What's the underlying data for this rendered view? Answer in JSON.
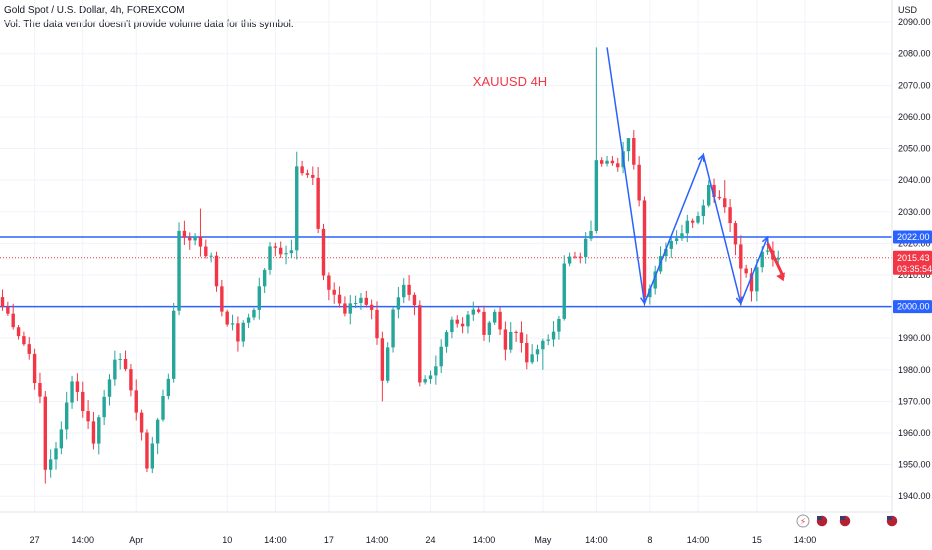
{
  "header": {
    "title": "Gold Spot / U.S. Dollar, 4h, FOREXCOM",
    "volume_note": "Vol: The data vendor doesn't provide volume data for this symbol."
  },
  "chart_data": {
    "type": "candlestick",
    "title": "XAUUSD 4H",
    "currency": "USD",
    "ylim": [
      1935,
      2097
    ],
    "y_ticks": [
      1940,
      1950,
      1960,
      1970,
      1980,
      1990,
      2000,
      2010,
      2020,
      2030,
      2040,
      2050,
      2060,
      2070,
      2080,
      2090
    ],
    "y_tick_labels": [
      "1940.00",
      "1950.00",
      "1960.00",
      "1970.00",
      "1980.00",
      "1990.00",
      "2000.00",
      "2010.00",
      "2020.00",
      "2030.00",
      "2040.00",
      "2050.00",
      "2060.00",
      "2070.00",
      "2080.00",
      "2090.00"
    ],
    "x_ticks": [
      {
        "label": "27",
        "bar": 6
      },
      {
        "label": "14:00",
        "bar": 15
      },
      {
        "label": "Apr",
        "bar": 25
      },
      {
        "label": "10",
        "bar": 42
      },
      {
        "label": "14:00",
        "bar": 51
      },
      {
        "label": "17",
        "bar": 61
      },
      {
        "label": "14:00",
        "bar": 70
      },
      {
        "label": "24",
        "bar": 80
      },
      {
        "label": "14:00",
        "bar": 90
      },
      {
        "label": "May",
        "bar": 101
      },
      {
        "label": "14:00",
        "bar": 111
      },
      {
        "label": "8",
        "bar": 121
      },
      {
        "label": "14:00",
        "bar": 130
      },
      {
        "label": "15",
        "bar": 141
      },
      {
        "label": "14:00",
        "bar": 150
      }
    ],
    "horizontal_levels": [
      {
        "price": 2022.0,
        "label": "2022.00",
        "color": "#2962ff"
      },
      {
        "price": 2000.0,
        "label": "2000.00",
        "color": "#2962ff"
      }
    ],
    "last_price": {
      "price": 2015.43,
      "label": "2015.43",
      "countdown": "03:35:54",
      "color": "#f23645"
    },
    "zigzag": [
      [
        113,
        2082
      ],
      [
        120,
        2001
      ],
      [
        131,
        2048
      ],
      [
        138,
        2001
      ],
      [
        143,
        2022
      ]
    ],
    "arrow": {
      "from": [
        143,
        2020
      ],
      "to": [
        146,
        2008
      ],
      "color": "#f23645"
    },
    "colors": {
      "up": "#26a69a",
      "down": "#f23645",
      "grid": "#f0f3fa",
      "zigzag": "#2962ff"
    },
    "anchors": [
      [
        0,
        2000
      ],
      [
        2,
        1995
      ],
      [
        5,
        1985
      ],
      [
        7,
        1970
      ],
      [
        8,
        1948
      ],
      [
        11,
        1960
      ],
      [
        13,
        1978
      ],
      [
        15,
        1968
      ],
      [
        17,
        1958
      ],
      [
        21,
        1985
      ],
      [
        24,
        1975
      ],
      [
        27,
        1950
      ],
      [
        31,
        1978
      ],
      [
        33,
        2022
      ],
      [
        36,
        2022
      ],
      [
        39,
        2015
      ],
      [
        41,
        1999
      ],
      [
        44,
        1990
      ],
      [
        47,
        2000
      ],
      [
        50,
        2018
      ],
      [
        54,
        2018
      ],
      [
        55,
        2046
      ],
      [
        58,
        2040
      ],
      [
        60,
        2008
      ],
      [
        62,
        2004
      ],
      [
        64,
        1998
      ],
      [
        67,
        2003
      ],
      [
        69,
        2000
      ],
      [
        71,
        1978
      ],
      [
        73,
        1998
      ],
      [
        75,
        2005
      ],
      [
        77,
        1999
      ],
      [
        78,
        1975
      ],
      [
        80,
        1978
      ],
      [
        82,
        1988
      ],
      [
        84,
        1997
      ],
      [
        86,
        1993
      ],
      [
        88,
        2000
      ],
      [
        90,
        1993
      ],
      [
        92,
        1998
      ],
      [
        94,
        1988
      ],
      [
        96,
        1992
      ],
      [
        98,
        1982
      ],
      [
        100,
        1988
      ],
      [
        102,
        1988
      ],
      [
        104,
        1998
      ],
      [
        105,
        2015
      ],
      [
        108,
        2015
      ],
      [
        110,
        2025
      ],
      [
        111,
        2045
      ],
      [
        113,
        2048
      ],
      [
        115,
        2046
      ],
      [
        117,
        2052
      ],
      [
        119,
        2035
      ],
      [
        120,
        2003
      ],
      [
        122,
        2012
      ],
      [
        124,
        2020
      ],
      [
        127,
        2024
      ],
      [
        130,
        2030
      ],
      [
        132,
        2038
      ],
      [
        135,
        2033
      ],
      [
        137,
        2020
      ],
      [
        138,
        2014
      ],
      [
        140,
        2005
      ],
      [
        142,
        2018
      ],
      [
        144,
        2014
      ],
      [
        145,
        2015.43
      ]
    ]
  }
}
